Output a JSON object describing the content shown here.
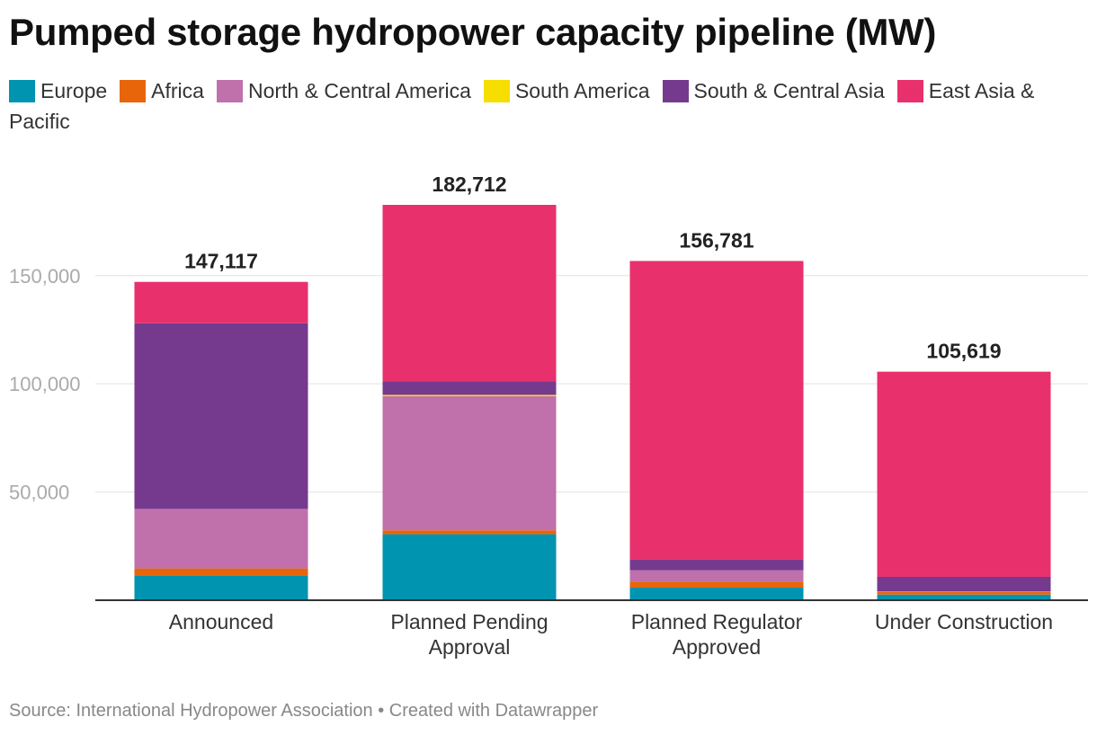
{
  "title": "Pumped storage hydropower capacity pipeline (MW)",
  "source": "Source: International Hydropower Association • Created with Datawrapper",
  "chart_data": {
    "type": "bar",
    "stacked": true,
    "title": "Pumped storage hydropower capacity pipeline (MW)",
    "xlabel": "",
    "ylabel": "",
    "ylim": [
      0,
      182712
    ],
    "yticks": [
      50000,
      100000,
      150000
    ],
    "ytick_labels": [
      "50,000",
      "100,000",
      "150,000"
    ],
    "grid": true,
    "legend": "top",
    "categories": [
      [
        "Announced"
      ],
      [
        "Planned Pending",
        "Approval"
      ],
      [
        "Planned Regulator",
        "Approved"
      ],
      [
        "Under Construction"
      ]
    ],
    "totals": [
      147117,
      182712,
      156781,
      105619
    ],
    "total_labels": [
      "147,117",
      "182,712",
      "156,781",
      "105,619"
    ],
    "series": [
      {
        "name": "Europe",
        "color": "#0094b0",
        "values": [
          11500,
          30500,
          5800,
          2600
        ]
      },
      {
        "name": "Africa",
        "color": "#e8650a",
        "values": [
          3200,
          1800,
          2800,
          1200
        ]
      },
      {
        "name": "North & Central America",
        "color": "#c070ab",
        "values": [
          27500,
          62000,
          5200,
          300
        ]
      },
      {
        "name": "South America",
        "color": "#f5de00",
        "values": [
          0,
          600,
          0,
          0
        ]
      },
      {
        "name": "South & Central Asia",
        "color": "#753a8e",
        "values": [
          85800,
          6200,
          5200,
          6700
        ]
      },
      {
        "name": "East Asia & Pacific",
        "color": "#e8306d",
        "values": [
          19117,
          81612,
          137781,
          94819
        ]
      }
    ]
  }
}
